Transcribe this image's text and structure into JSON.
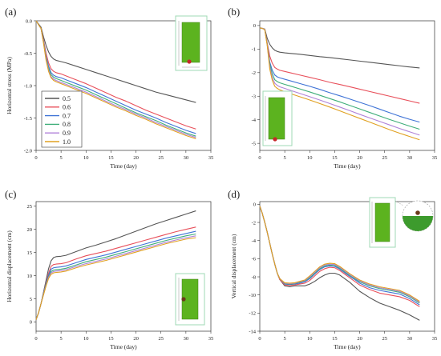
{
  "figure": {
    "colors": {
      "0.5": "#555555",
      "0.6": "#e8505b",
      "0.7": "#3f73d6",
      "0.8": "#3fae79",
      "0.9": "#b082d8",
      "1.0": "#e0a020"
    },
    "inset_colors": {
      "column": "#5cb31f",
      "frame": "#9fd8b4",
      "marker": "#c62828"
    }
  },
  "chart_data": [
    {
      "panel": "(a)",
      "type": "line",
      "xlabel": "Time (day)",
      "ylabel": "Horizontal stress (MPa)",
      "xlim": [
        0,
        35
      ],
      "ylim": [
        -2.0,
        0.0
      ],
      "xticks": [
        "0",
        "5",
        "10",
        "15",
        "20",
        "25",
        "30",
        "35"
      ],
      "yticks": [
        "0.0",
        "-0.5",
        "-1.0",
        "-1.5",
        "-2.0"
      ],
      "legend_position": "bottom-left",
      "x": [
        0,
        0.5,
        1,
        1.5,
        2,
        2.5,
        3,
        3.5,
        4,
        5,
        6,
        8,
        10,
        12,
        14,
        16,
        18,
        20,
        22,
        24,
        26,
        28,
        30,
        32
      ],
      "series": [
        {
          "name": "0.5",
          "values": [
            0,
            -0.05,
            -0.1,
            -0.25,
            -0.38,
            -0.48,
            -0.55,
            -0.59,
            -0.61,
            -0.63,
            -0.65,
            -0.7,
            -0.75,
            -0.8,
            -0.85,
            -0.9,
            -0.95,
            -1.0,
            -1.05,
            -1.1,
            -1.14,
            -1.18,
            -1.22,
            -1.26
          ]
        },
        {
          "name": "0.6",
          "values": [
            0,
            -0.06,
            -0.12,
            -0.3,
            -0.5,
            -0.65,
            -0.74,
            -0.78,
            -0.8,
            -0.82,
            -0.85,
            -0.91,
            -0.97,
            -1.04,
            -1.11,
            -1.18,
            -1.24,
            -1.31,
            -1.38,
            -1.44,
            -1.5,
            -1.56,
            -1.62,
            -1.67
          ]
        },
        {
          "name": "0.7",
          "values": [
            0,
            -0.06,
            -0.12,
            -0.32,
            -0.55,
            -0.7,
            -0.8,
            -0.84,
            -0.86,
            -0.88,
            -0.91,
            -0.97,
            -1.03,
            -1.1,
            -1.17,
            -1.24,
            -1.31,
            -1.38,
            -1.44,
            -1.5,
            -1.57,
            -1.63,
            -1.69,
            -1.74
          ]
        },
        {
          "name": "0.8",
          "values": [
            0,
            -0.06,
            -0.12,
            -0.33,
            -0.57,
            -0.73,
            -0.83,
            -0.87,
            -0.89,
            -0.92,
            -0.95,
            -1.01,
            -1.07,
            -1.14,
            -1.21,
            -1.28,
            -1.35,
            -1.42,
            -1.48,
            -1.54,
            -1.61,
            -1.67,
            -1.73,
            -1.78
          ]
        },
        {
          "name": "0.9",
          "values": [
            0,
            -0.06,
            -0.12,
            -0.34,
            -0.59,
            -0.76,
            -0.86,
            -0.9,
            -0.92,
            -0.95,
            -0.98,
            -1.04,
            -1.1,
            -1.17,
            -1.24,
            -1.31,
            -1.37,
            -1.44,
            -1.5,
            -1.57,
            -1.63,
            -1.69,
            -1.75,
            -1.8
          ]
        },
        {
          "name": "1.0",
          "values": [
            0,
            -0.06,
            -0.12,
            -0.35,
            -0.61,
            -0.78,
            -0.88,
            -0.92,
            -0.94,
            -0.97,
            -1.0,
            -1.06,
            -1.12,
            -1.19,
            -1.26,
            -1.33,
            -1.39,
            -1.46,
            -1.52,
            -1.59,
            -1.65,
            -1.71,
            -1.77,
            -1.82
          ]
        }
      ]
    },
    {
      "panel": "(b)",
      "type": "line",
      "xlabel": "Time (day)",
      "ylabel": "",
      "xlim": [
        0,
        35
      ],
      "ylim": [
        -5.3,
        0.2
      ],
      "xticks": [
        "0",
        "5",
        "10",
        "15",
        "20",
        "25",
        "30",
        "35"
      ],
      "yticks": [
        "0",
        "-1",
        "-2",
        "-3",
        "-4",
        "-5"
      ],
      "x": [
        0,
        0.5,
        1,
        1.5,
        2,
        2.5,
        3,
        3.5,
        4,
        5,
        6,
        8,
        10,
        12,
        14,
        16,
        18,
        20,
        22,
        24,
        26,
        28,
        30,
        32
      ],
      "series": [
        {
          "name": "0.5",
          "values": [
            -0.1,
            -0.12,
            -0.15,
            -0.55,
            -0.8,
            -0.95,
            -1.05,
            -1.1,
            -1.13,
            -1.16,
            -1.18,
            -1.22,
            -1.27,
            -1.32,
            -1.36,
            -1.41,
            -1.46,
            -1.51,
            -1.56,
            -1.61,
            -1.66,
            -1.71,
            -1.76,
            -1.8
          ]
        },
        {
          "name": "0.6",
          "values": [
            -0.1,
            -0.12,
            -0.16,
            -0.75,
            -1.3,
            -1.6,
            -1.78,
            -1.85,
            -1.9,
            -1.95,
            -2.0,
            -2.1,
            -2.2,
            -2.3,
            -2.41,
            -2.5,
            -2.6,
            -2.7,
            -2.8,
            -2.9,
            -3.0,
            -3.1,
            -3.2,
            -3.3
          ]
        },
        {
          "name": "0.7",
          "values": [
            -0.1,
            -0.12,
            -0.17,
            -0.8,
            -1.55,
            -1.9,
            -2.1,
            -2.18,
            -2.22,
            -2.28,
            -2.34,
            -2.46,
            -2.58,
            -2.71,
            -2.85,
            -2.98,
            -3.12,
            -3.26,
            -3.4,
            -3.55,
            -3.7,
            -3.85,
            -3.98,
            -4.1
          ]
        },
        {
          "name": "0.8",
          "values": [
            -0.1,
            -0.12,
            -0.17,
            -0.82,
            -1.65,
            -2.05,
            -2.3,
            -2.38,
            -2.43,
            -2.5,
            -2.56,
            -2.69,
            -2.82,
            -2.96,
            -3.1,
            -3.24,
            -3.39,
            -3.54,
            -3.69,
            -3.84,
            -3.99,
            -4.13,
            -4.27,
            -4.4
          ]
        },
        {
          "name": "0.9",
          "values": [
            -0.1,
            -0.12,
            -0.17,
            -0.84,
            -1.75,
            -2.2,
            -2.45,
            -2.54,
            -2.6,
            -2.67,
            -2.74,
            -2.88,
            -3.02,
            -3.16,
            -3.31,
            -3.46,
            -3.61,
            -3.77,
            -3.92,
            -4.07,
            -4.22,
            -4.37,
            -4.51,
            -4.65
          ]
        },
        {
          "name": "1.0",
          "values": [
            -0.1,
            -0.12,
            -0.18,
            -0.86,
            -1.85,
            -2.32,
            -2.58,
            -2.67,
            -2.73,
            -2.81,
            -2.88,
            -3.02,
            -3.16,
            -3.31,
            -3.46,
            -3.62,
            -3.78,
            -3.94,
            -4.1,
            -4.26,
            -4.42,
            -4.57,
            -4.71,
            -4.85
          ]
        }
      ]
    },
    {
      "panel": "(c)",
      "type": "line",
      "xlabel": "Time (day)",
      "ylabel": "Horizontal displacement (cm)",
      "xlim": [
        0,
        35
      ],
      "ylim": [
        -2,
        26
      ],
      "xticks": [
        "0",
        "5",
        "10",
        "15",
        "20",
        "25",
        "30",
        "35"
      ],
      "yticks": [
        "0",
        "5",
        "10",
        "15",
        "20",
        "25"
      ],
      "x": [
        0,
        0.5,
        1,
        1.5,
        2,
        2.5,
        3,
        3.5,
        4,
        5,
        6,
        8,
        10,
        12,
        14,
        16,
        18,
        20,
        22,
        24,
        26,
        28,
        30,
        32
      ],
      "series": [
        {
          "name": "0.5",
          "values": [
            0.5,
            2,
            4,
            6.5,
            9,
            11.5,
            13.2,
            13.9,
            14.1,
            14.2,
            14.4,
            15.2,
            16.0,
            16.6,
            17.3,
            18.0,
            18.8,
            19.6,
            20.4,
            21.2,
            21.9,
            22.6,
            23.3,
            24.0
          ]
        },
        {
          "name": "0.6",
          "values": [
            0.5,
            2,
            4,
            6.3,
            8.5,
            10.5,
            12.0,
            12.4,
            12.5,
            12.6,
            12.8,
            13.6,
            14.3,
            14.8,
            15.3,
            15.9,
            16.5,
            17.1,
            17.7,
            18.3,
            18.9,
            19.5,
            20.0,
            20.5
          ]
        },
        {
          "name": "0.7",
          "values": [
            0.5,
            2,
            4,
            6.2,
            8.3,
            10.1,
            11.4,
            11.7,
            11.8,
            11.9,
            12.1,
            12.8,
            13.5,
            14.0,
            14.5,
            15.1,
            15.7,
            16.3,
            16.9,
            17.5,
            18.1,
            18.6,
            19.1,
            19.6
          ]
        },
        {
          "name": "0.8",
          "values": [
            0.5,
            2,
            4,
            6.1,
            8.1,
            9.8,
            10.9,
            11.2,
            11.3,
            11.4,
            11.6,
            12.3,
            13.0,
            13.5,
            14.0,
            14.6,
            15.2,
            15.8,
            16.4,
            17.0,
            17.6,
            18.1,
            18.6,
            19.0
          ]
        },
        {
          "name": "0.9",
          "values": [
            0.5,
            2,
            4,
            6.0,
            7.9,
            9.6,
            10.6,
            10.9,
            11.0,
            11.1,
            11.3,
            12.0,
            12.6,
            13.1,
            13.6,
            14.2,
            14.8,
            15.4,
            16.0,
            16.6,
            17.2,
            17.7,
            18.2,
            18.6
          ]
        },
        {
          "name": "1.0",
          "values": [
            0.5,
            2,
            4,
            5.9,
            7.8,
            9.4,
            10.3,
            10.6,
            10.7,
            10.8,
            11.0,
            11.7,
            12.3,
            12.8,
            13.3,
            13.9,
            14.5,
            15.1,
            15.7,
            16.3,
            16.9,
            17.4,
            17.9,
            18.2
          ]
        }
      ]
    },
    {
      "panel": "(d)",
      "type": "line",
      "xlabel": "Time (day)",
      "ylabel": "Vertical displacement (cm)",
      "xlim": [
        0,
        35
      ],
      "ylim": [
        -14,
        0.3
      ],
      "xticks": [
        "0",
        "5",
        "10",
        "15",
        "20",
        "25",
        "30",
        "35"
      ],
      "yticks": [
        "0",
        "-2",
        "-4",
        "-6",
        "-8",
        "-10",
        "-12",
        "-14"
      ],
      "x": [
        0,
        0.5,
        1,
        1.5,
        2,
        2.5,
        3,
        3.5,
        4,
        5,
        6,
        7,
        8,
        9,
        10,
        11,
        12,
        13,
        14,
        15,
        16,
        17,
        18,
        19,
        20,
        22,
        24,
        26,
        28,
        30,
        32
      ],
      "series": [
        {
          "name": "0.5",
          "values": [
            -0.2,
            -1.0,
            -2.0,
            -3.1,
            -4.3,
            -5.5,
            -6.6,
            -7.6,
            -8.3,
            -9.0,
            -9.1,
            -9.0,
            -9.0,
            -9.0,
            -8.8,
            -8.5,
            -8.1,
            -7.8,
            -7.6,
            -7.6,
            -7.8,
            -8.2,
            -8.6,
            -9.1,
            -9.6,
            -10.3,
            -10.9,
            -11.3,
            -11.7,
            -12.2,
            -12.8
          ]
        },
        {
          "name": "0.6",
          "values": [
            -0.2,
            -1.0,
            -2.0,
            -3.1,
            -4.3,
            -5.5,
            -6.6,
            -7.6,
            -8.3,
            -8.9,
            -8.95,
            -8.9,
            -8.8,
            -8.7,
            -8.4,
            -7.9,
            -7.4,
            -7.1,
            -6.95,
            -7.0,
            -7.3,
            -7.7,
            -8.1,
            -8.5,
            -8.9,
            -9.4,
            -9.8,
            -10.0,
            -10.2,
            -10.6,
            -11.3
          ]
        },
        {
          "name": "0.7",
          "values": [
            -0.2,
            -1.0,
            -2.0,
            -3.1,
            -4.3,
            -5.5,
            -6.6,
            -7.6,
            -8.2,
            -8.8,
            -8.85,
            -8.8,
            -8.7,
            -8.55,
            -8.2,
            -7.7,
            -7.2,
            -6.9,
            -6.8,
            -6.85,
            -7.15,
            -7.55,
            -7.95,
            -8.3,
            -8.7,
            -9.2,
            -9.5,
            -9.7,
            -9.9,
            -10.4,
            -11.1
          ]
        },
        {
          "name": "0.8",
          "values": [
            -0.2,
            -1.0,
            -2.0,
            -3.1,
            -4.3,
            -5.5,
            -6.6,
            -7.6,
            -8.2,
            -8.75,
            -8.8,
            -8.75,
            -8.6,
            -8.45,
            -8.1,
            -7.6,
            -7.1,
            -6.8,
            -6.7,
            -6.75,
            -7.05,
            -7.45,
            -7.85,
            -8.2,
            -8.55,
            -9.0,
            -9.3,
            -9.5,
            -9.7,
            -10.2,
            -10.9
          ]
        },
        {
          "name": "0.9",
          "values": [
            -0.2,
            -1.0,
            -2.0,
            -3.1,
            -4.3,
            -5.5,
            -6.6,
            -7.6,
            -8.2,
            -8.7,
            -8.75,
            -8.7,
            -8.55,
            -8.4,
            -8.0,
            -7.5,
            -7.0,
            -6.7,
            -6.6,
            -6.65,
            -6.95,
            -7.35,
            -7.75,
            -8.1,
            -8.45,
            -8.9,
            -9.2,
            -9.4,
            -9.6,
            -10.1,
            -10.8
          ]
        },
        {
          "name": "1.0",
          "values": [
            -0.2,
            -1.0,
            -2.0,
            -3.1,
            -4.3,
            -5.5,
            -6.6,
            -7.6,
            -8.2,
            -8.65,
            -8.7,
            -8.65,
            -8.5,
            -8.35,
            -7.9,
            -7.4,
            -6.9,
            -6.6,
            -6.5,
            -6.55,
            -6.85,
            -7.25,
            -7.65,
            -8.0,
            -8.35,
            -8.8,
            -9.1,
            -9.3,
            -9.5,
            -10.0,
            -10.7
          ]
        }
      ]
    }
  ]
}
